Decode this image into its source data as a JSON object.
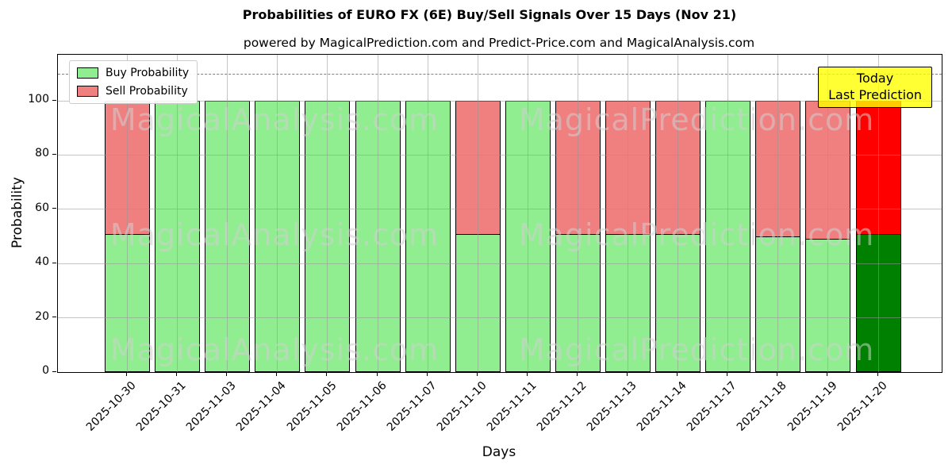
{
  "chart_data": {
    "type": "bar",
    "stacked": true,
    "title": "Probabilities of EURO FX (6E) Buy/Sell Signals Over 15 Days (Nov 21)",
    "subtitle": "powered by MagicalPrediction.com and Predict-Price.com and MagicalAnalysis.com",
    "xlabel": "Days",
    "ylabel": "Probability",
    "ylim": [
      0,
      117
    ],
    "yticks": [
      0,
      20,
      40,
      60,
      80,
      100
    ],
    "dashed_line_y": 110,
    "grid": true,
    "legend_position": "upper left",
    "legend": [
      {
        "label": "Buy Probability",
        "color": "#90ee90"
      },
      {
        "label": "Sell Probability",
        "color": "#f08080"
      }
    ],
    "categories": [
      "2025-10-30",
      "2025-10-31",
      "2025-11-03",
      "2025-11-04",
      "2025-11-05",
      "2025-11-06",
      "2025-11-07",
      "2025-11-10",
      "2025-11-11",
      "2025-11-12",
      "2025-11-13",
      "2025-11-14",
      "2025-11-17",
      "2025-11-18",
      "2025-11-19",
      "2025-11-20"
    ],
    "series": [
      {
        "name": "Buy Probability",
        "color": "#90ee90",
        "values": [
          51,
          100,
          100,
          100,
          100,
          100,
          100,
          51,
          100,
          51,
          51,
          51,
          100,
          50,
          49,
          51
        ]
      },
      {
        "name": "Sell Probability",
        "color": "#f08080",
        "values": [
          49,
          0,
          0,
          0,
          0,
          0,
          0,
          49,
          0,
          49,
          49,
          49,
          0,
          50,
          51,
          49
        ]
      }
    ],
    "today_bar": {
      "index": 15,
      "buy_color": "#008000",
      "sell_color": "#ff0000"
    },
    "annotation": {
      "line1": "Today",
      "line2": "Last Prediction",
      "bg_color": "#ffff00"
    },
    "watermarks": {
      "left": "MagicalAnalysis.com",
      "right": "MagicalPrediction.com"
    }
  }
}
